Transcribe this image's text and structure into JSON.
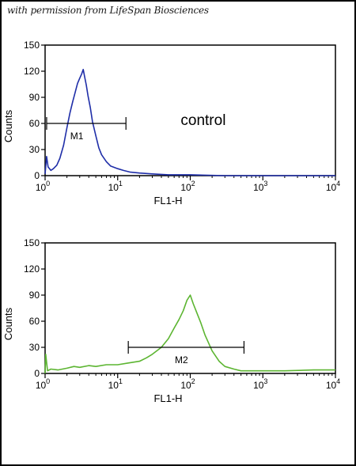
{
  "watermark": "with permission from LifeSpan Biosciences",
  "colors": {
    "control": "#1f2ea8",
    "sample": "#5cb531",
    "axis": "#000000"
  },
  "chart_data": [
    {
      "type": "line",
      "xscale": "log",
      "xlim": [
        1,
        10000
      ],
      "ylim": [
        0,
        150
      ],
      "xticks": [
        1,
        10,
        100,
        1000,
        10000
      ],
      "xtick_labels": [
        {
          "base": "10",
          "exp": "0"
        },
        {
          "base": "10",
          "exp": "1"
        },
        {
          "base": "10",
          "exp": "2"
        },
        {
          "base": "10",
          "exp": "3"
        },
        {
          "base": "10",
          "exp": "4"
        }
      ],
      "yticks": [
        0,
        30,
        60,
        90,
        120,
        150
      ],
      "xlabel": "FL1-H",
      "ylabel": "Counts",
      "annotation": "control",
      "series": [
        {
          "color": "#1f2ea8",
          "x": [
            1.0,
            1.05,
            1.1,
            1.2,
            1.3,
            1.45,
            1.6,
            1.8,
            2.0,
            2.2,
            2.4,
            2.6,
            2.8,
            3.0,
            3.2,
            3.35,
            3.5,
            3.7,
            3.9,
            4.2,
            4.5,
            5.0,
            5.5,
            6.0,
            7.0,
            8.0,
            10.0,
            12.0,
            15.0,
            20.0,
            30.0,
            50.0,
            100.0,
            300.0,
            1000.0,
            10000.0
          ],
          "y": [
            2,
            22,
            10,
            6,
            8,
            12,
            20,
            35,
            55,
            72,
            85,
            96,
            106,
            112,
            117,
            122,
            114,
            104,
            92,
            78,
            62,
            46,
            32,
            24,
            16,
            11,
            8,
            6,
            4,
            3,
            2,
            1,
            1,
            0,
            0,
            0
          ]
        }
      ],
      "marker": {
        "label": "M1",
        "x_range": [
          1.05,
          13.0
        ],
        "y": 60
      }
    },
    {
      "type": "line",
      "xscale": "log",
      "xlim": [
        1,
        10000
      ],
      "ylim": [
        0,
        150
      ],
      "xticks": [
        1,
        10,
        100,
        1000,
        10000
      ],
      "xtick_labels": [
        {
          "base": "10",
          "exp": "0"
        },
        {
          "base": "10",
          "exp": "1"
        },
        {
          "base": "10",
          "exp": "2"
        },
        {
          "base": "10",
          "exp": "3"
        },
        {
          "base": "10",
          "exp": "4"
        }
      ],
      "yticks": [
        0,
        30,
        60,
        90,
        120,
        150
      ],
      "xlabel": "FL1-H",
      "ylabel": "Counts",
      "series": [
        {
          "color": "#5cb531",
          "x": [
            1.0,
            1.02,
            1.08,
            1.2,
            1.5,
            2.0,
            2.5,
            3.0,
            4.0,
            5.0,
            7.0,
            10.0,
            14.0,
            20.0,
            25.0,
            30.0,
            40.0,
            50.0,
            60.0,
            70.0,
            80.0,
            90.0,
            100.0,
            110.0,
            120.0,
            140.0,
            160.0,
            200.0,
            250.0,
            300.0,
            400.0,
            500.0,
            700.0,
            1000.0,
            2000.0,
            5000.0,
            10000.0
          ],
          "y": [
            0,
            22,
            3,
            5,
            4,
            6,
            8,
            7,
            9,
            8,
            10,
            10,
            12,
            14,
            18,
            22,
            30,
            40,
            52,
            62,
            72,
            84,
            90,
            80,
            72,
            58,
            44,
            26,
            14,
            8,
            5,
            3,
            3,
            3,
            3,
            4,
            4
          ]
        }
      ],
      "marker": {
        "label": "M2",
        "x_range": [
          14.0,
          550.0
        ],
        "y": 30
      }
    }
  ]
}
